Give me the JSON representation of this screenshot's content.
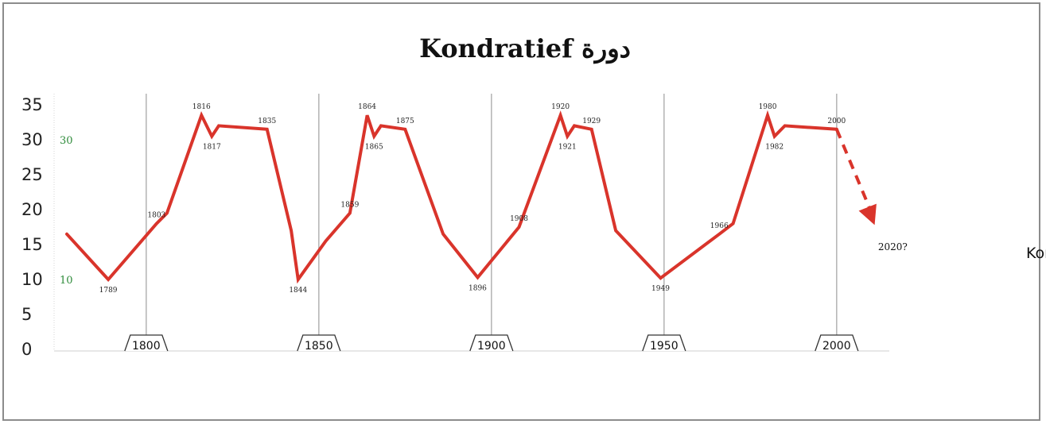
{
  "chart_data": {
    "type": "line",
    "title": "دورة Kondratief",
    "xlabel": "",
    "ylabel": "",
    "xlim": [
      1777,
      2030
    ],
    "ylim": [
      0,
      35
    ],
    "y_ticks": [
      0,
      5,
      10,
      15,
      20,
      25,
      30,
      35
    ],
    "x_ticks": [
      1800,
      1850,
      1900,
      1950,
      2000
    ],
    "x_tick_labels": [
      "1800",
      "1850",
      "1900",
      "1950",
      "2000"
    ],
    "reference_labels": [
      {
        "label": "30",
        "y": 30
      },
      {
        "label": "10",
        "y": 10
      }
    ],
    "series": [
      {
        "color": "#d9342b",
        "points": [
          [
            1777,
            16.5
          ],
          [
            1789,
            10
          ],
          [
            1803,
            18
          ],
          [
            1806,
            19.5
          ],
          [
            1816,
            33.5
          ],
          [
            1819,
            30.5
          ],
          [
            1821,
            32
          ],
          [
            1835,
            31.5
          ],
          [
            1842,
            17
          ],
          [
            1844,
            10
          ],
          [
            1852,
            15.5
          ],
          [
            1859,
            19.5
          ],
          [
            1864,
            33.5
          ],
          [
            1866,
            30.5
          ],
          [
            1868,
            32
          ],
          [
            1875,
            31.5
          ],
          [
            1886,
            16.5
          ],
          [
            1896,
            10.3
          ],
          [
            1908,
            17.5
          ],
          [
            1920,
            33.5
          ],
          [
            1922,
            30.5
          ],
          [
            1924,
            32
          ],
          [
            1929,
            31.5
          ],
          [
            1936,
            17
          ],
          [
            1949,
            10.2
          ],
          [
            1966,
            16.5
          ],
          [
            1970,
            18
          ],
          [
            1980,
            33.5
          ],
          [
            1982,
            30.5
          ],
          [
            1985,
            32
          ],
          [
            2000,
            31.5
          ]
        ]
      }
    ],
    "forecast": {
      "from": [
        2000,
        31.5
      ],
      "to": [
        2011,
        17.8
      ],
      "style": "dashed"
    },
    "annotations": [
      {
        "label": "1789",
        "x": 1789,
        "y": 10,
        "pos": "below"
      },
      {
        "label": "1803",
        "x": 1803,
        "y": 18,
        "pos": "above"
      },
      {
        "label": "1816",
        "x": 1816,
        "y": 33.5,
        "pos": "above"
      },
      {
        "label": "1817",
        "x": 1819,
        "y": 30.5,
        "pos": "below"
      },
      {
        "label": "1835",
        "x": 1835,
        "y": 31.5,
        "pos": "above"
      },
      {
        "label": "1844",
        "x": 1844,
        "y": 10,
        "pos": "below"
      },
      {
        "label": "1859",
        "x": 1859,
        "y": 19.5,
        "pos": "above"
      },
      {
        "label": "1864",
        "x": 1864,
        "y": 33.5,
        "pos": "above"
      },
      {
        "label": "1865",
        "x": 1866,
        "y": 30.5,
        "pos": "below"
      },
      {
        "label": "1875",
        "x": 1875,
        "y": 31.5,
        "pos": "above"
      },
      {
        "label": "1896",
        "x": 1896,
        "y": 10.3,
        "pos": "below"
      },
      {
        "label": "1908",
        "x": 1908,
        "y": 17.5,
        "pos": "above"
      },
      {
        "label": "1920",
        "x": 1920,
        "y": 33.5,
        "pos": "above"
      },
      {
        "label": "1921",
        "x": 1922,
        "y": 30.5,
        "pos": "below"
      },
      {
        "label": "1929",
        "x": 1929,
        "y": 31.5,
        "pos": "above"
      },
      {
        "label": "1949",
        "x": 1949,
        "y": 10.2,
        "pos": "below"
      },
      {
        "label": "1966",
        "x": 1966,
        "y": 16.5,
        "pos": "above"
      },
      {
        "label": "1980",
        "x": 1980,
        "y": 33.5,
        "pos": "above"
      },
      {
        "label": "1982",
        "x": 1982,
        "y": 30.5,
        "pos": "below"
      },
      {
        "label": "2000",
        "x": 2000,
        "y": 31.5,
        "pos": "above"
      },
      {
        "label": "2020?",
        "x": 2012,
        "y": 16,
        "pos": "below"
      }
    ],
    "side_label": "دورة Kondratief",
    "grid": false,
    "legend": "none"
  },
  "colors": {
    "line": "#d9342b",
    "reference_label": "#2e8b3a",
    "vertical_markers": "#9a9a9a",
    "frame": "#8c8c8c"
  }
}
